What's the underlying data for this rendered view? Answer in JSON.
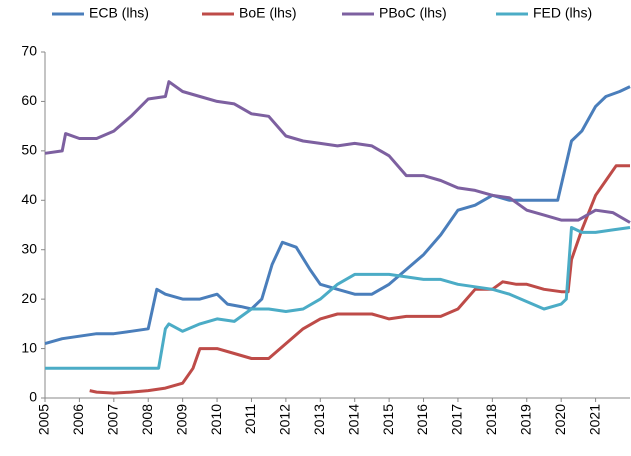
{
  "chart_data": {
    "type": "line",
    "xlim": [
      2005,
      2022
    ],
    "xticks": [
      2005,
      2006,
      2007,
      2008,
      2009,
      2010,
      2011,
      2012,
      2013,
      2014,
      2015,
      2016,
      2017,
      2018,
      2019,
      2020,
      2021
    ],
    "ylim": [
      0,
      70
    ],
    "yticks": [
      0,
      10,
      20,
      30,
      40,
      50,
      60,
      70
    ],
    "grid": false,
    "legend": "top",
    "series": [
      {
        "name": "ECB (lhs)",
        "color": "#4a7ebb",
        "x": [
          2005,
          2005.5,
          2006,
          2006.5,
          2007,
          2007.5,
          2008,
          2008.25,
          2008.5,
          2009,
          2009.5,
          2010,
          2010.3,
          2010.7,
          2011,
          2011.3,
          2011.6,
          2011.9,
          2012.3,
          2012.7,
          2013,
          2013.5,
          2014,
          2014.5,
          2015,
          2015.5,
          2016,
          2016.5,
          2017,
          2017.5,
          2018,
          2018.5,
          2019,
          2019.5,
          2019.9,
          2020.1,
          2020.3,
          2020.6,
          2021,
          2021.3,
          2021.7,
          2022
        ],
        "values": [
          11,
          12,
          12.5,
          13,
          13,
          13.5,
          14,
          22,
          21,
          20,
          20,
          21,
          19,
          18.5,
          18,
          20,
          27,
          31.5,
          30.5,
          26,
          23,
          22,
          21,
          21,
          23,
          26,
          29,
          33,
          38,
          39,
          41,
          40,
          40,
          40,
          40,
          46,
          52,
          54,
          59,
          61,
          62,
          63
        ]
      },
      {
        "name": "BoE (lhs)",
        "color": "#be4b48",
        "x": [
          2006.3,
          2006.5,
          2007,
          2007.5,
          2008,
          2008.5,
          2009,
          2009.3,
          2009.5,
          2010,
          2010.5,
          2011,
          2011.5,
          2012,
          2012.5,
          2013,
          2013.5,
          2014,
          2014.5,
          2015,
          2015.5,
          2016,
          2016.5,
          2017,
          2017.5,
          2018,
          2018.3,
          2018.7,
          2019,
          2019.5,
          2020,
          2020.2,
          2020.3,
          2020.6,
          2021,
          2021.3,
          2021.6,
          2022
        ],
        "values": [
          1.5,
          1.2,
          1,
          1.2,
          1.5,
          2,
          3,
          6,
          10,
          10,
          9,
          8,
          8,
          11,
          14,
          16,
          17,
          17,
          17,
          16,
          16.5,
          16.5,
          16.5,
          18,
          22,
          22,
          23.5,
          23,
          23,
          22,
          21.5,
          21.5,
          28,
          34,
          41,
          44,
          47,
          47
        ]
      },
      {
        "name": "PBoC (lhs)",
        "color": "#7d60a0",
        "x": [
          2005,
          2005.5,
          2005.6,
          2006,
          2006.5,
          2007,
          2007.5,
          2008,
          2008.5,
          2008.6,
          2009,
          2009.5,
          2010,
          2010.5,
          2011,
          2011.5,
          2012,
          2012.5,
          2013,
          2013.5,
          2014,
          2014.5,
          2015,
          2015.5,
          2016,
          2016.5,
          2017,
          2017.5,
          2018,
          2018.5,
          2019,
          2019.5,
          2020,
          2020.5,
          2021,
          2021.5,
          2022
        ],
        "values": [
          49.5,
          50,
          53.5,
          52.5,
          52.5,
          54,
          57,
          60.5,
          61,
          64,
          62,
          61,
          60,
          59.5,
          57.5,
          57,
          53,
          52,
          51.5,
          51,
          51.5,
          51,
          49,
          45,
          45,
          44,
          42.5,
          42,
          41,
          40.5,
          38,
          37,
          36,
          36,
          38,
          37.5,
          35.5
        ]
      },
      {
        "name": "FED (lhs)",
        "color": "#4bacc6",
        "x": [
          2005,
          2005.5,
          2006,
          2007,
          2008,
          2008.3,
          2008.5,
          2008.6,
          2009,
          2009.5,
          2010,
          2010.5,
          2011,
          2011.5,
          2012,
          2012.5,
          2013,
          2013.5,
          2014,
          2014.5,
          2015,
          2015.5,
          2016,
          2016.5,
          2017,
          2017.5,
          2018,
          2018.5,
          2019,
          2019.5,
          2020,
          2020.15,
          2020.3,
          2020.6,
          2021,
          2021.5,
          2022
        ],
        "values": [
          6,
          6,
          6,
          6,
          6,
          6,
          14,
          15,
          13.5,
          15,
          16,
          15.5,
          18,
          18,
          17.5,
          18,
          20,
          23,
          25,
          25,
          25,
          24.5,
          24,
          24,
          23,
          22.5,
          22,
          21,
          19.5,
          18,
          19,
          20,
          34.5,
          33.5,
          33.5,
          34,
          34.5
        ]
      }
    ]
  }
}
